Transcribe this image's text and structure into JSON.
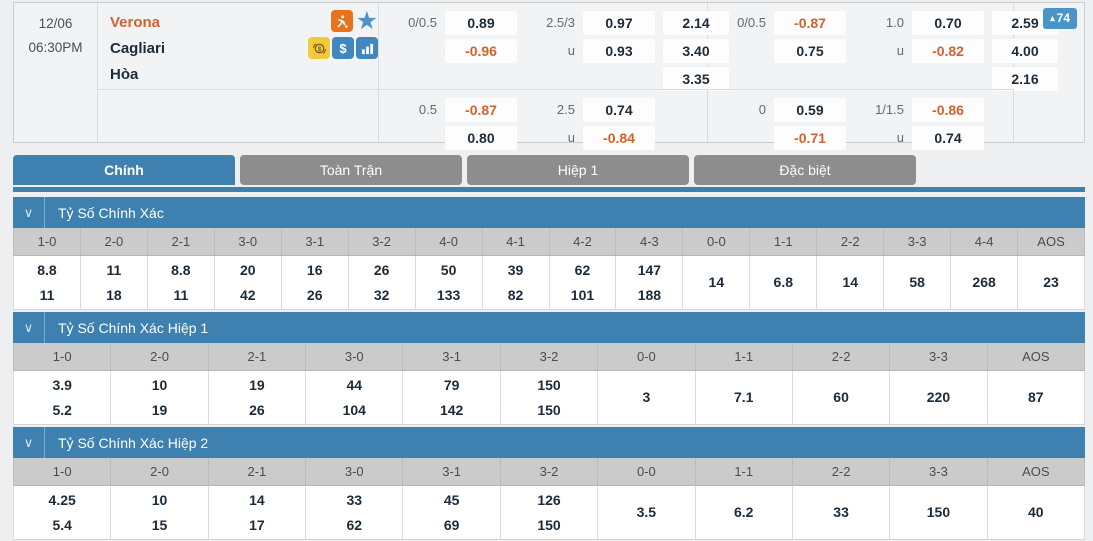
{
  "colors": {
    "accent_blue": "#3e80b0",
    "tab_gray": "#8d8d8d",
    "orange": "#d2622d",
    "badge_blue": "#4a94ca",
    "icon_blue": "#4186bf",
    "icon_orange": "#e8731d",
    "icon_yellow": "#f2ca3d"
  },
  "icons": {
    "chevron_down": "∨",
    "star": "★",
    "arrow_up": "▴",
    "dollar": "$"
  },
  "match": {
    "date": "12/06",
    "time": "06:30PM",
    "home_team": "Verona",
    "away_team": "Cagliari",
    "draw_label": "Hòa",
    "badge_value": "74"
  },
  "odds": {
    "blocks": [
      {
        "main": {
          "hdp_label": "0/0.5",
          "hdp_top": "0.89",
          "hdp_bottom": "-0.96",
          "ou_label": "2.5/3",
          "ou_under": "u",
          "ou_top": "0.97",
          "ou_bottom": "0.93",
          "x12_home": "2.14",
          "x12_away": "3.40",
          "x12_draw": "3.35"
        },
        "second": {
          "hdp_label": "0.5",
          "hdp_top": "-0.87",
          "hdp_bottom": "0.80",
          "ou_label": "2.5",
          "ou_under": "u",
          "ou_top": "0.74",
          "ou_bottom": "-0.84"
        }
      },
      {
        "main": {
          "hdp_label": "0/0.5",
          "hdp_top": "-0.87",
          "hdp_bottom": "0.75",
          "ou_label": "1.0",
          "ou_under": "u",
          "ou_top": "0.70",
          "ou_bottom": "-0.82",
          "x12_home": "2.59",
          "x12_away": "4.00",
          "x12_draw": "2.16"
        },
        "second": {
          "hdp_label": "0",
          "hdp_top": "0.59",
          "hdp_bottom": "-0.71",
          "ou_label": "1/1.5",
          "ou_under": "u",
          "ou_top": "-0.86",
          "ou_bottom": "0.74"
        }
      }
    ]
  },
  "tabs": [
    {
      "label": "Chính",
      "active": true
    },
    {
      "label": "Toàn Trận",
      "active": false
    },
    {
      "label": "Hiệp 1",
      "active": false
    },
    {
      "label": "Đặc biệt",
      "active": false
    }
  ],
  "sections": [
    {
      "title": "Tỷ Số Chính Xác",
      "columns": [
        "1-0",
        "2-0",
        "2-1",
        "3-0",
        "3-1",
        "3-2",
        "4-0",
        "4-1",
        "4-2",
        "4-3",
        "0-0",
        "1-1",
        "2-2",
        "3-3",
        "4-4",
        "AOS"
      ],
      "values": [
        [
          "8.8",
          "11"
        ],
        [
          "11",
          "18"
        ],
        [
          "8.8",
          "11"
        ],
        [
          "20",
          "42"
        ],
        [
          "16",
          "26"
        ],
        [
          "26",
          "32"
        ],
        [
          "50",
          "133"
        ],
        [
          "39",
          "82"
        ],
        [
          "62",
          "101"
        ],
        [
          "147",
          "188"
        ],
        [
          "14"
        ],
        [
          "6.8"
        ],
        [
          "14"
        ],
        [
          "58"
        ],
        [
          "268"
        ],
        [
          "23"
        ]
      ]
    },
    {
      "title": "Tỷ Số Chính Xác Hiệp 1",
      "columns": [
        "1-0",
        "2-0",
        "2-1",
        "3-0",
        "3-1",
        "3-2",
        "0-0",
        "1-1",
        "2-2",
        "3-3",
        "AOS"
      ],
      "values": [
        [
          "3.9",
          "5.2"
        ],
        [
          "10",
          "19"
        ],
        [
          "19",
          "26"
        ],
        [
          "44",
          "104"
        ],
        [
          "79",
          "142"
        ],
        [
          "150",
          "150"
        ],
        [
          "3"
        ],
        [
          "7.1"
        ],
        [
          "60"
        ],
        [
          "220"
        ],
        [
          "87"
        ]
      ]
    },
    {
      "title": "Tỷ Số Chính Xác Hiệp 2",
      "columns": [
        "1-0",
        "2-0",
        "2-1",
        "3-0",
        "3-1",
        "3-2",
        "0-0",
        "1-1",
        "2-2",
        "3-3",
        "AOS"
      ],
      "values": [
        [
          "4.25",
          "5.4"
        ],
        [
          "10",
          "15"
        ],
        [
          "14",
          "17"
        ],
        [
          "33",
          "62"
        ],
        [
          "45",
          "69"
        ],
        [
          "126",
          "150"
        ],
        [
          "3.5"
        ],
        [
          "6.2"
        ],
        [
          "33"
        ],
        [
          "150"
        ],
        [
          "40"
        ]
      ]
    }
  ]
}
